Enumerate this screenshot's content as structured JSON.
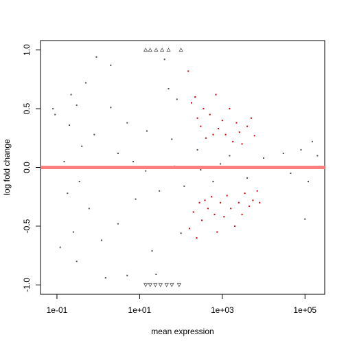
{
  "chart_data": {
    "type": "scatter",
    "title": "",
    "xlabel": "mean expression",
    "ylabel": "log fold change",
    "xscale": "log10",
    "xlim": [
      0.04,
      300000
    ],
    "ylim": [
      -1.08,
      1.08
    ],
    "x_ticks": [
      {
        "value": 0.1,
        "label": "1e-01"
      },
      {
        "value": 10,
        "label": "1e+01"
      },
      {
        "value": 1000,
        "label": "1e+03"
      },
      {
        "value": 100000,
        "label": "1e+05"
      }
    ],
    "y_ticks": [
      {
        "value": -1.0,
        "label": "-1.0"
      },
      {
        "value": -0.5,
        "label": "-0.5"
      },
      {
        "value": 0.0,
        "label": "0.0"
      },
      {
        "value": 0.5,
        "label": "0.5"
      },
      {
        "value": 1.0,
        "label": "1.0"
      }
    ],
    "reference_line": {
      "y": 0,
      "color": "#ff7f7f"
    },
    "series": [
      {
        "color": "#4d4d4d",
        "points": [
          [
            0.3,
            0.53
          ],
          [
            0.2,
            0.36
          ],
          [
            0.22,
            0.62
          ],
          [
            0.09,
            0.45
          ],
          [
            0.35,
            -0.12
          ],
          [
            0.18,
            -0.22
          ],
          [
            0.25,
            -0.55
          ],
          [
            0.3,
            -0.8
          ],
          [
            0.4,
            0.18
          ],
          [
            0.5,
            0.72
          ],
          [
            0.6,
            -0.35
          ],
          [
            0.8,
            0.28
          ],
          [
            1.2,
            -0.62
          ],
          [
            2.0,
            0.51
          ],
          [
            3.0,
            -0.48
          ],
          [
            5.0,
            0.38
          ],
          [
            8.0,
            -0.27
          ],
          [
            15,
            0.31
          ],
          [
            30,
            -0.2
          ],
          [
            60,
            0.24
          ],
          [
            120,
            -0.16
          ],
          [
            250,
            0.15
          ],
          [
            600,
            -0.12
          ],
          [
            1500,
            0.1
          ],
          [
            4000,
            -0.09
          ],
          [
            10000,
            0.08
          ],
          [
            30000,
            0.12
          ],
          [
            45000,
            -0.05
          ],
          [
            80000,
            0.15
          ],
          [
            150000,
            0.22
          ],
          [
            120000,
            -0.12
          ],
          [
            100000,
            -0.44
          ],
          [
            200000,
            0.1
          ],
          [
            2,
            0.87
          ],
          [
            5,
            -0.92
          ],
          [
            40,
            0.92
          ],
          [
            80,
            0.58
          ],
          [
            20,
            -0.71
          ],
          [
            25,
            -0.91
          ],
          [
            50,
            0.67
          ],
          [
            100,
            -0.56
          ],
          [
            0.08,
            0.5
          ],
          [
            0.12,
            -0.68
          ],
          [
            0.15,
            0.05
          ],
          [
            0.9,
            0.94
          ],
          [
            1.5,
            -0.94
          ],
          [
            3,
            0.12
          ],
          [
            7,
            0.05
          ],
          [
            14,
            -0.03
          ],
          [
            70,
            0.01
          ],
          [
            300,
            -0.02
          ],
          [
            900,
            0.03
          ],
          [
            2500,
            0.0
          ]
        ]
      },
      {
        "color": "#cc0000",
        "points": [
          [
            150,
            0.82
          ],
          [
            180,
            0.55
          ],
          [
            220,
            0.6
          ],
          [
            250,
            0.42
          ],
          [
            300,
            0.35
          ],
          [
            350,
            0.5
          ],
          [
            400,
            0.25
          ],
          [
            500,
            0.45
          ],
          [
            600,
            0.28
          ],
          [
            700,
            0.62
          ],
          [
            800,
            0.33
          ],
          [
            1000,
            0.4
          ],
          [
            1200,
            0.28
          ],
          [
            1500,
            0.5
          ],
          [
            1800,
            0.22
          ],
          [
            2200,
            0.38
          ],
          [
            2600,
            0.3
          ],
          [
            3000,
            0.2
          ],
          [
            4000,
            0.35
          ],
          [
            5000,
            0.42
          ],
          [
            6000,
            0.27
          ],
          [
            160,
            -0.52
          ],
          [
            200,
            -0.38
          ],
          [
            240,
            -0.6
          ],
          [
            280,
            -0.3
          ],
          [
            320,
            -0.45
          ],
          [
            380,
            -0.28
          ],
          [
            450,
            -0.35
          ],
          [
            550,
            -0.25
          ],
          [
            650,
            -0.4
          ],
          [
            750,
            -0.55
          ],
          [
            900,
            -0.3
          ],
          [
            1100,
            -0.42
          ],
          [
            1300,
            -0.24
          ],
          [
            1600,
            -0.35
          ],
          [
            2000,
            -0.5
          ],
          [
            2500,
            -0.3
          ],
          [
            3000,
            -0.4
          ],
          [
            3500,
            -0.22
          ],
          [
            4500,
            -0.33
          ],
          [
            5500,
            -0.28
          ],
          [
            7000,
            -0.2
          ],
          [
            8000,
            -0.3
          ]
        ]
      },
      {
        "color": "#4d4d4d",
        "marker": "triangle-up",
        "points": [
          [
            14,
            1.0
          ],
          [
            18,
            1.0
          ],
          [
            25,
            1.0
          ],
          [
            35,
            1.0
          ],
          [
            50,
            1.0
          ],
          [
            100,
            1.0
          ]
        ]
      },
      {
        "color": "#4d4d4d",
        "marker": "triangle-down",
        "points": [
          [
            14,
            -1.0
          ],
          [
            18,
            -1.0
          ],
          [
            24,
            -1.0
          ],
          [
            32,
            -1.0
          ],
          [
            45,
            -1.0
          ],
          [
            60,
            -1.0
          ],
          [
            90,
            -1.0
          ]
        ]
      }
    ]
  }
}
